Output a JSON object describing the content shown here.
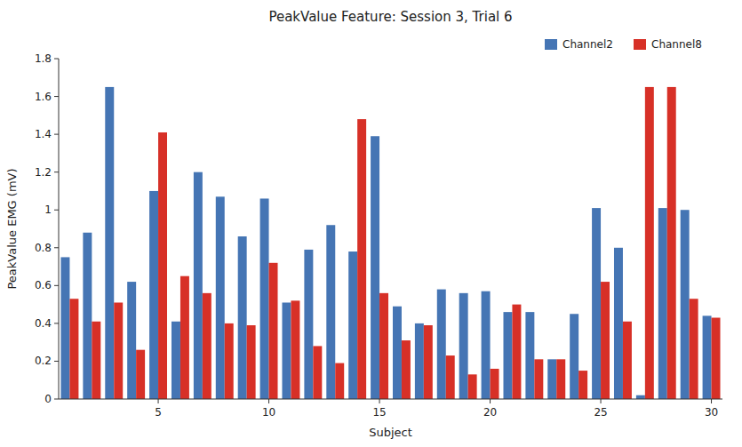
{
  "chart_data": {
    "type": "bar",
    "title": "PeakValue Feature: Session 3, Trial 6",
    "xlabel": "Subject",
    "ylabel": "PeakValue EMG (mV)",
    "x": [
      1,
      2,
      3,
      4,
      5,
      6,
      7,
      8,
      9,
      10,
      11,
      12,
      13,
      14,
      15,
      16,
      17,
      18,
      19,
      20,
      21,
      22,
      23,
      24,
      25,
      26,
      27,
      28,
      29,
      30
    ],
    "series": [
      {
        "name": "Channel2",
        "color": "#4575b4",
        "values": [
          0.75,
          0.88,
          1.65,
          0.62,
          1.1,
          0.41,
          1.2,
          1.07,
          0.86,
          1.06,
          0.51,
          0.79,
          0.92,
          0.78,
          1.39,
          0.49,
          0.4,
          0.58,
          0.56,
          0.57,
          0.46,
          0.46,
          0.21,
          0.45,
          1.01,
          0.8,
          0.02,
          1.01,
          1.0,
          0.44
        ]
      },
      {
        "name": "Channel8",
        "color": "#d73027",
        "values": [
          0.53,
          0.41,
          0.51,
          0.26,
          1.41,
          0.65,
          0.56,
          0.4,
          0.39,
          0.72,
          0.52,
          0.28,
          0.19,
          1.48,
          0.56,
          0.31,
          0.39,
          0.23,
          0.13,
          0.16,
          0.5,
          0.21,
          0.21,
          0.15,
          0.62,
          0.41,
          1.65,
          1.65,
          0.53,
          0.43
        ]
      }
    ],
    "xlim": [
      0.5,
      30.5
    ],
    "xticks": [
      5,
      10,
      15,
      20,
      25,
      30
    ],
    "ylim": [
      0,
      1.8
    ],
    "yticks": [
      0,
      0.2,
      0.4,
      0.6,
      0.8,
      1.0,
      1.2,
      1.4,
      1.6,
      1.8
    ],
    "grid": false,
    "legend": "upper right"
  }
}
